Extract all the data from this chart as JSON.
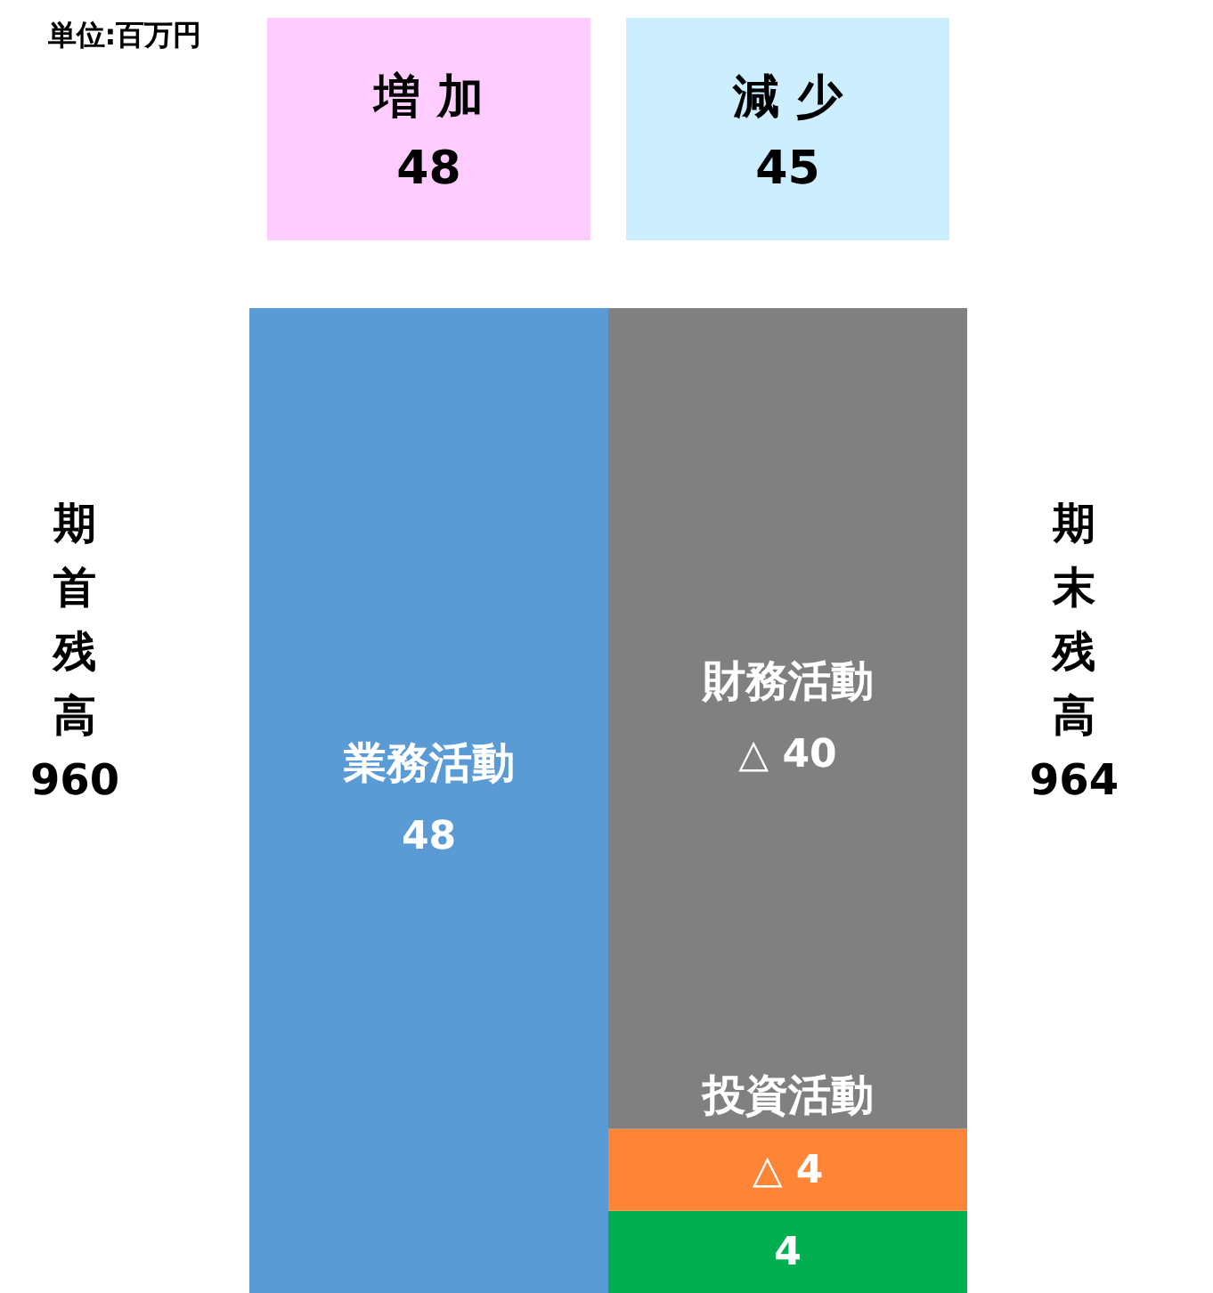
{
  "chart_data": {
    "type": "bar",
    "stacked": true,
    "categories": [
      "増 加",
      "減 少"
    ],
    "series": [
      {
        "name": "業務活動",
        "color": "#5b9bd5",
        "values": [
          48,
          null
        ],
        "value_labels": [
          "48",
          null
        ]
      },
      {
        "color": "#00b050",
        "values": [
          null,
          4
        ],
        "value_labels": [
          null,
          "4"
        ]
      },
      {
        "name": "投資活動",
        "color": "#fd8535",
        "values": [
          null,
          4
        ],
        "value_labels": [
          null,
          "△ 4"
        ]
      },
      {
        "name": "財務活動",
        "color": "#808080",
        "values": [
          null,
          40
        ],
        "value_labels": [
          null,
          "△ 40"
        ]
      }
    ],
    "annotations": [
      "単位:百万円",
      "期首残高 960",
      "期末残高 964",
      "48",
      "45"
    ]
  }
}
